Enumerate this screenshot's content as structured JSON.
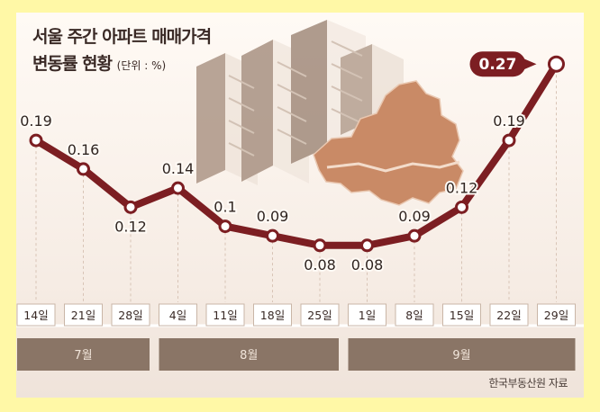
{
  "title": {
    "line1": "서울 주간 아파트 매매가격",
    "line2": "변동률 현황",
    "unit": "(단위 : %)"
  },
  "source": "한국부동산원 자료",
  "colors": {
    "background": "#fff8a6",
    "line": "#7c1e22",
    "marker_fill": "#ffffff",
    "highlight_bg": "#7c1e22",
    "month_band": "#8a7566",
    "seoul_map": "#c98a66"
  },
  "chart_data": {
    "type": "line",
    "title": "서울 주간 아파트 매매가격 변동률 현황",
    "unit": "%",
    "categories": [
      "14일",
      "21일",
      "28일",
      "4일",
      "11일",
      "18일",
      "25일",
      "1일",
      "8일",
      "15일",
      "22일",
      "29일"
    ],
    "values": [
      0.19,
      0.16,
      0.12,
      0.14,
      0.1,
      0.09,
      0.08,
      0.08,
      0.09,
      0.12,
      0.19,
      0.27
    ],
    "value_labels": [
      "0.19",
      "0.16",
      "0.12",
      "0.14",
      "0.1",
      "0.09",
      "0.08",
      "0.08",
      "0.09",
      "0.12",
      "0.19",
      "0.27"
    ],
    "highlight_index": 11,
    "months": [
      {
        "label": "7월",
        "span": 3
      },
      {
        "label": "8월",
        "span": 4
      },
      {
        "label": "9월",
        "span": 5
      }
    ],
    "ylim": [
      0.06,
      0.29
    ],
    "grid": false,
    "legend": "none"
  }
}
